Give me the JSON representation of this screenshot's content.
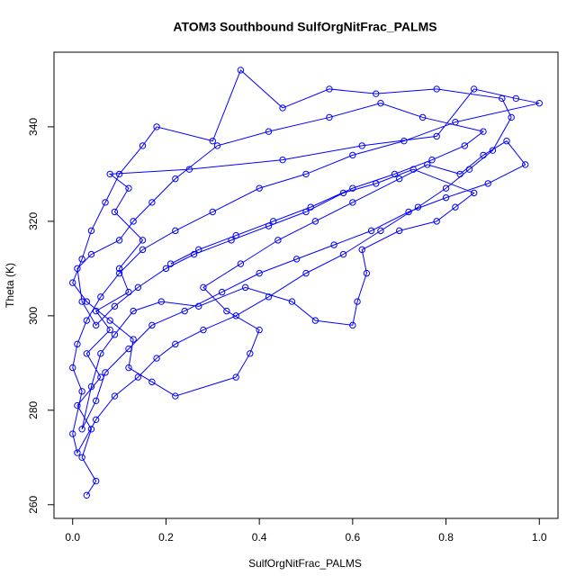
{
  "chart_data": {
    "type": "line",
    "title": "ATOM3 Southbound SulfOrgNitFrac_PALMS",
    "x_label": "SulfOrgNitFrac_PALMS",
    "y_label": "Theta (K)",
    "xlim": [
      -0.04,
      1.04
    ],
    "ylim": [
      257.1,
      355.8
    ],
    "xticks": [
      {
        "value": 0,
        "label": "0.0"
      },
      {
        "value": 0.2,
        "label": "0.2"
      },
      {
        "value": 0.4,
        "label": "0.4"
      },
      {
        "value": 0.6,
        "label": "0.6"
      },
      {
        "value": 0.8,
        "label": "0.8"
      },
      {
        "value": 1,
        "label": "1.0"
      }
    ],
    "yticks": [
      260,
      280,
      300,
      320,
      340
    ],
    "x": [
      0.03,
      0.05,
      0.02,
      0.04,
      0.01,
      0.06,
      0.03,
      0.08,
      0.05,
      0.12,
      0.1,
      0.15,
      0.09,
      0.12,
      0.08,
      0.25,
      0.45,
      0.62,
      0.78,
      0.86,
      0.95,
      1.0,
      0.82,
      0.71,
      0.6,
      0.5,
      0.4,
      0.3,
      0.22,
      0.15,
      0.1,
      0.06,
      0.03,
      0.01,
      0.0,
      0.02,
      0.0,
      0.01,
      0.05,
      0.09,
      0.14,
      0.18,
      0.22,
      0.28,
      0.35,
      0.42,
      0.5,
      0.58,
      0.66,
      0.74,
      0.8,
      0.85,
      0.9,
      0.94,
      0.92,
      0.78,
      0.65,
      0.55,
      0.45,
      0.36,
      0.3,
      0.18,
      0.15,
      0.1,
      0.07,
      0.04,
      0.02,
      0.0,
      0.03,
      0.08,
      0.13,
      0.12,
      0.17,
      0.22,
      0.35,
      0.38,
      0.4,
      0.33,
      0.28,
      0.36,
      0.44,
      0.52,
      0.6,
      0.7,
      0.76,
      0.83,
      0.88,
      0.93,
      0.97,
      0.89,
      0.8,
      0.72,
      0.64,
      0.56,
      0.48,
      0.4,
      0.32,
      0.24,
      0.17,
      0.12,
      0.07,
      0.05,
      0.02,
      0.04,
      0.06,
      0.09,
      0.13,
      0.19,
      0.27,
      0.37,
      0.47,
      0.52,
      0.6,
      0.61,
      0.63,
      0.62,
      0.7,
      0.78,
      0.82,
      0.86,
      0.73,
      0.65,
      0.58,
      0.5,
      0.42,
      0.34,
      0.26,
      0.2,
      0.14,
      0.09,
      0.05,
      0.02,
      0.01,
      0.04,
      0.1,
      0.13,
      0.17,
      0.22,
      0.31,
      0.42,
      0.55,
      0.66,
      0.75,
      0.88,
      0.84,
      0.77,
      0.69,
      0.6,
      0.51,
      0.43,
      0.35,
      0.27,
      0.21
    ],
    "series": [
      {
        "color": "#0000ff",
        "values": [
          262,
          265,
          270,
          276,
          281,
          287,
          292,
          297,
          301,
          305,
          310,
          316,
          322,
          327,
          330,
          331,
          333,
          336,
          338,
          348,
          346,
          345,
          341,
          337,
          334,
          330,
          327,
          322,
          318,
          314,
          309,
          304,
          299,
          294,
          289,
          284,
          275,
          271,
          278,
          283,
          287,
          291,
          294,
          297,
          300,
          304,
          309,
          313,
          318,
          323,
          327,
          331,
          335,
          342,
          346,
          348,
          347,
          348,
          344,
          352,
          337,
          340,
          336,
          330,
          324,
          318,
          312,
          307,
          303,
          299,
          295,
          289,
          286,
          283,
          287,
          292,
          297,
          301,
          306,
          311,
          316,
          320,
          324,
          329,
          332,
          330,
          334,
          337,
          332,
          328,
          325,
          322,
          318,
          315,
          312,
          309,
          305,
          301,
          298,
          293,
          288,
          282,
          276,
          285,
          292,
          296,
          301,
          303,
          302,
          306,
          303,
          299,
          298,
          303,
          309,
          314,
          318,
          320,
          323,
          326,
          331,
          328,
          326,
          322,
          319,
          316,
          313,
          310,
          306,
          302,
          298,
          303,
          310,
          313,
          316,
          320,
          324,
          329,
          336,
          339,
          342,
          345,
          342,
          339,
          336,
          333,
          330,
          327,
          323,
          320,
          317,
          314,
          311
        ]
      }
    ]
  }
}
